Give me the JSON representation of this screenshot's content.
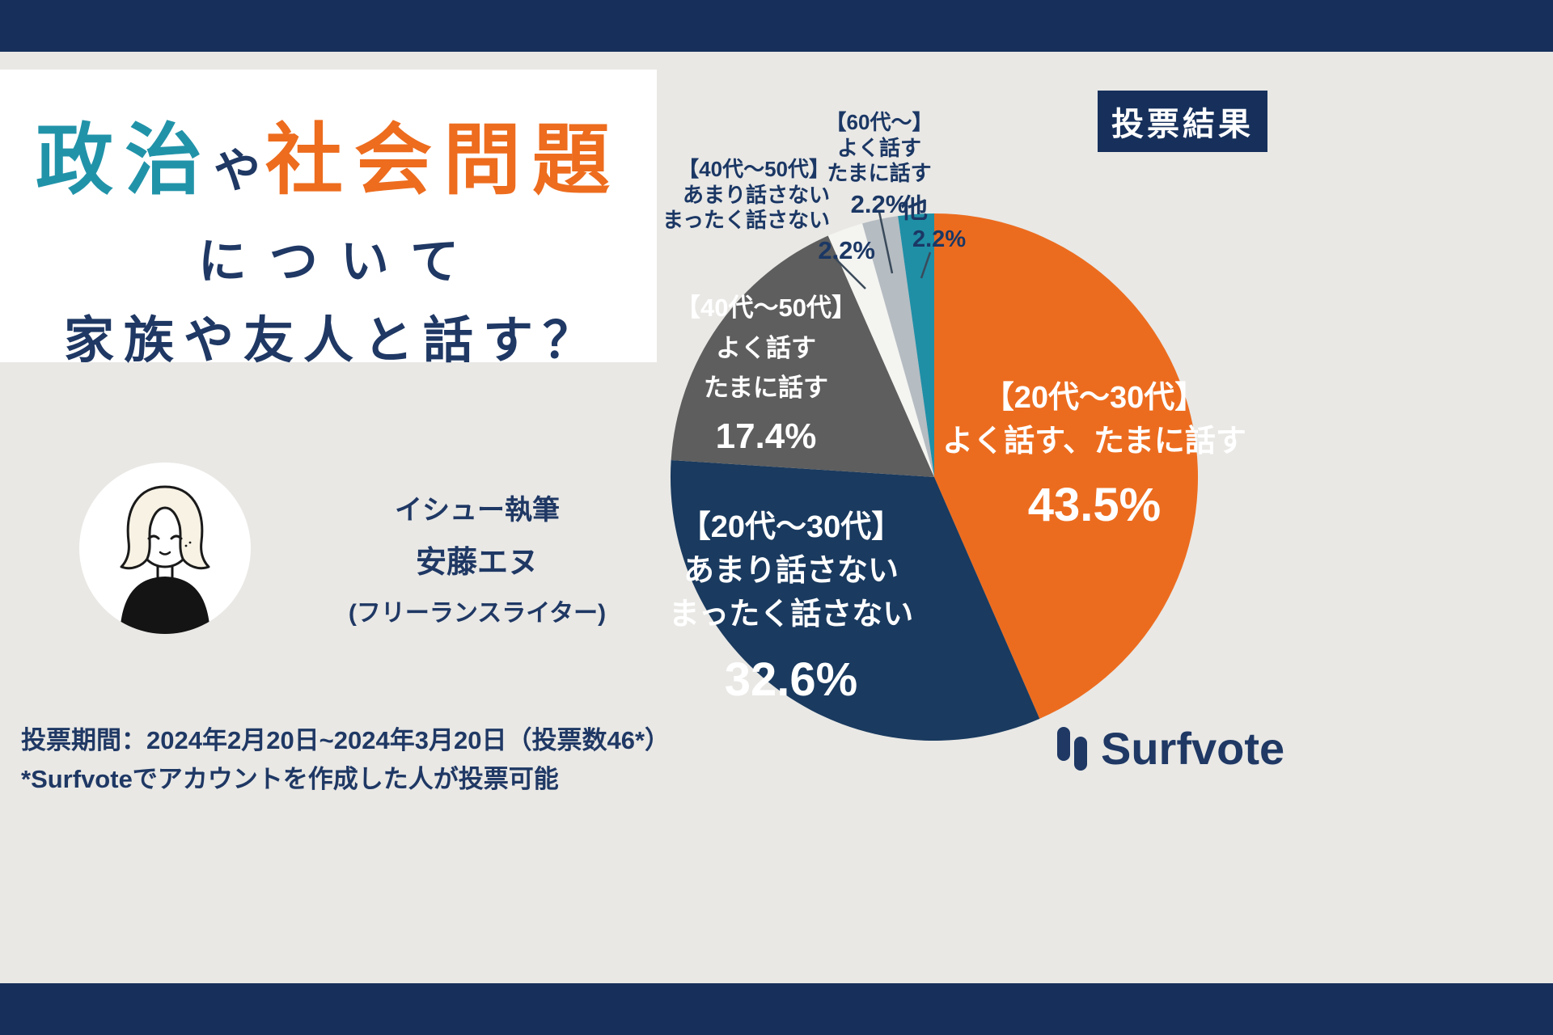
{
  "title": {
    "part1": "政治",
    "part2": "や",
    "part3": "社会問題",
    "line2": "について",
    "line3": "家族や友人と話す？"
  },
  "badge": {
    "label": "投票結果"
  },
  "author": {
    "role": "イシュー執筆",
    "name": "安藤エヌ",
    "note": "(フリーランスライター)"
  },
  "footer": {
    "period": "投票期間：2024年2月20日~2024年3月20日（投票数46*）",
    "note": "*Surfvoteでアカウントを作成した人が投票可能"
  },
  "logo": {
    "text": "Surfvote"
  },
  "colors": {
    "navy": "#16305b",
    "teal": "#2193a9",
    "orange": "#ed6c1e",
    "background": "#e9e8e5"
  },
  "chart_data": {
    "type": "pie",
    "title": "政治や社会問題について家族や友人と話す？ 投票結果",
    "total_votes": "投票数46*",
    "direction": "clockwise",
    "start_angle_deg": 0,
    "legend_position": "on-chart",
    "slices": [
      {
        "label": "【20代〜30代】よく話す、たまに話す",
        "value": 43.5,
        "display": "43.5%",
        "color": "#ec6c1f",
        "label_lines": [
          "【20代〜30代】",
          "よく話す、たまに話す"
        ]
      },
      {
        "label": "【20代〜30代】あまり話さない まったく話さない",
        "value": 32.6,
        "display": "32.6%",
        "color": "#1a3a5f",
        "label_lines": [
          "【20代〜30代】",
          "あまり話さない",
          "まったく話さない"
        ]
      },
      {
        "label": "【40代〜50代】よく話す たまに話す",
        "value": 17.4,
        "display": "17.4%",
        "color": "#5e5e5e",
        "label_lines": [
          "【40代〜50代】",
          "よく話す",
          "たまに話す"
        ]
      },
      {
        "label": "【40代〜50代】あまり話さない まったく話さない",
        "value": 2.2,
        "display": "2.2%",
        "color": "#f4f4f1",
        "label_lines": [
          "【40代〜50代】",
          "あまり話さない",
          "まったく話さない"
        ]
      },
      {
        "label": "【60代〜】よく話す たまに話す",
        "value": 2.2,
        "display": "2.2%",
        "color": "#b5bcc2",
        "label_lines": [
          "【60代〜】",
          "よく話す",
          "たまに話す"
        ]
      },
      {
        "label": "他",
        "value": 2.2,
        "display": "2.2%",
        "color": "#1f8fa6",
        "label_lines": [
          "他"
        ]
      }
    ]
  }
}
